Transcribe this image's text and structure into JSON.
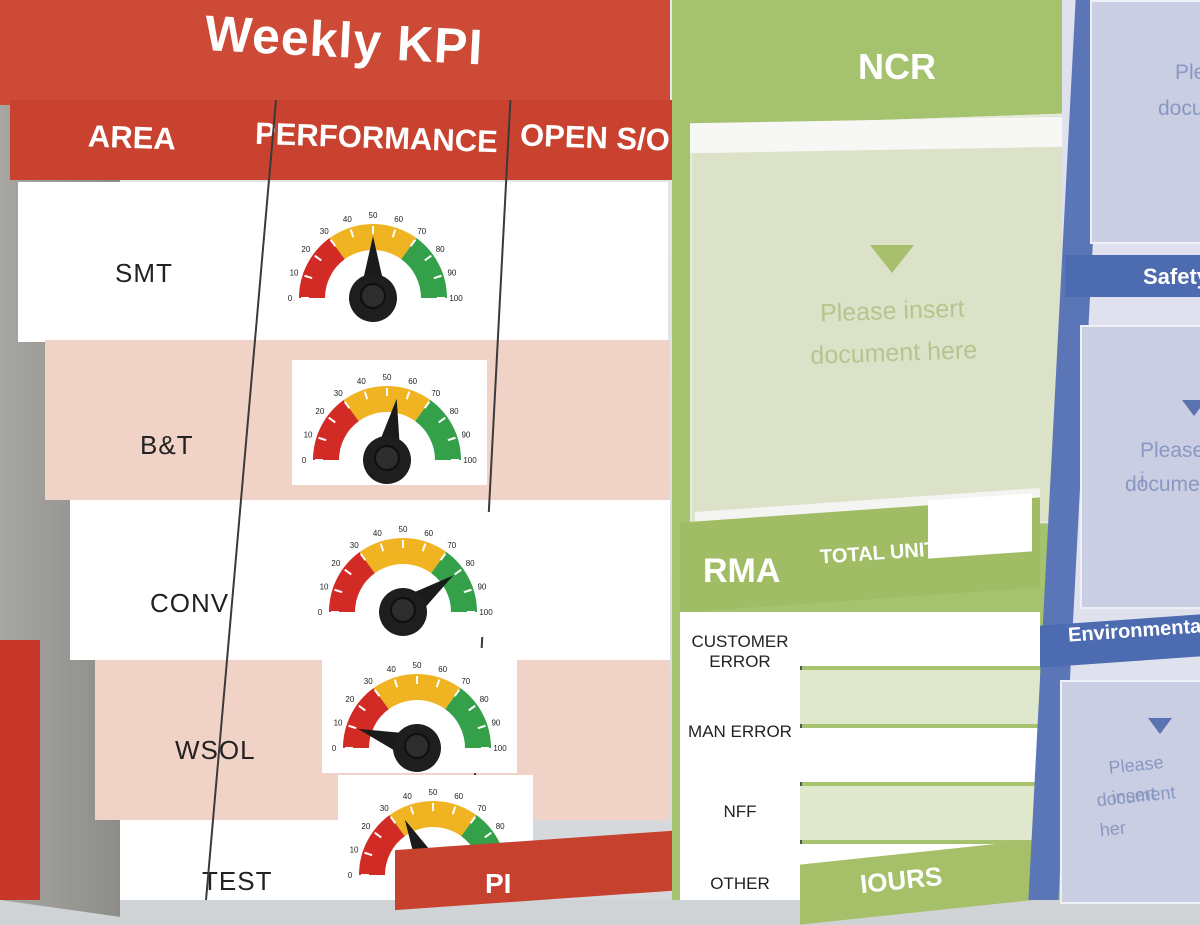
{
  "kpi": {
    "title": "Weekly KPI",
    "columns": [
      "AREA",
      "PERFORMANCE",
      "OPEN S/O"
    ],
    "rows": [
      {
        "area": "SMT",
        "needle": 50
      },
      {
        "area": "B&T",
        "needle": 55
      },
      {
        "area": "CONV",
        "needle": 80
      },
      {
        "area": "WSOL",
        "needle": 10
      },
      {
        "area": "TEST",
        "needle": 35
      }
    ],
    "gauge_ticks": [
      "0",
      "10",
      "20",
      "30",
      "40",
      "50",
      "60",
      "70",
      "80",
      "90",
      "100"
    ],
    "bottom_band_fragment": "PI"
  },
  "ncr": {
    "title": "NCR",
    "pocket_text_1": "Please insert",
    "pocket_text_2": "document here"
  },
  "rma": {
    "title": "RMA",
    "total_units_label": "TOTAL UNITS",
    "rows": [
      {
        "label_1": "CUSTOMER",
        "label_2": "ERROR"
      },
      {
        "label_1": "MAN ERROR",
        "label_2": ""
      },
      {
        "label_1": "NFF",
        "label_2": ""
      },
      {
        "label_1": "OTHER",
        "label_2": ""
      }
    ],
    "hours_fragment": "IOURS"
  },
  "blue": {
    "top_text_1": "Ple",
    "top_text_2": "docu",
    "safety": "Safety",
    "mid_text_1": "Please i",
    "mid_text_2": "documen",
    "environmental": "Environmenta",
    "bot_text_1": "Please insert",
    "bot_text_2": "document her"
  },
  "colors": {
    "kpi_red": "#cc4a36",
    "row_pink": "#f1d2c6",
    "ncr_green": "#a5c26f",
    "blue": "#4d6bb0",
    "gauge_red": "#d22a25",
    "gauge_yellow": "#f0b423",
    "gauge_green": "#34a04a"
  }
}
